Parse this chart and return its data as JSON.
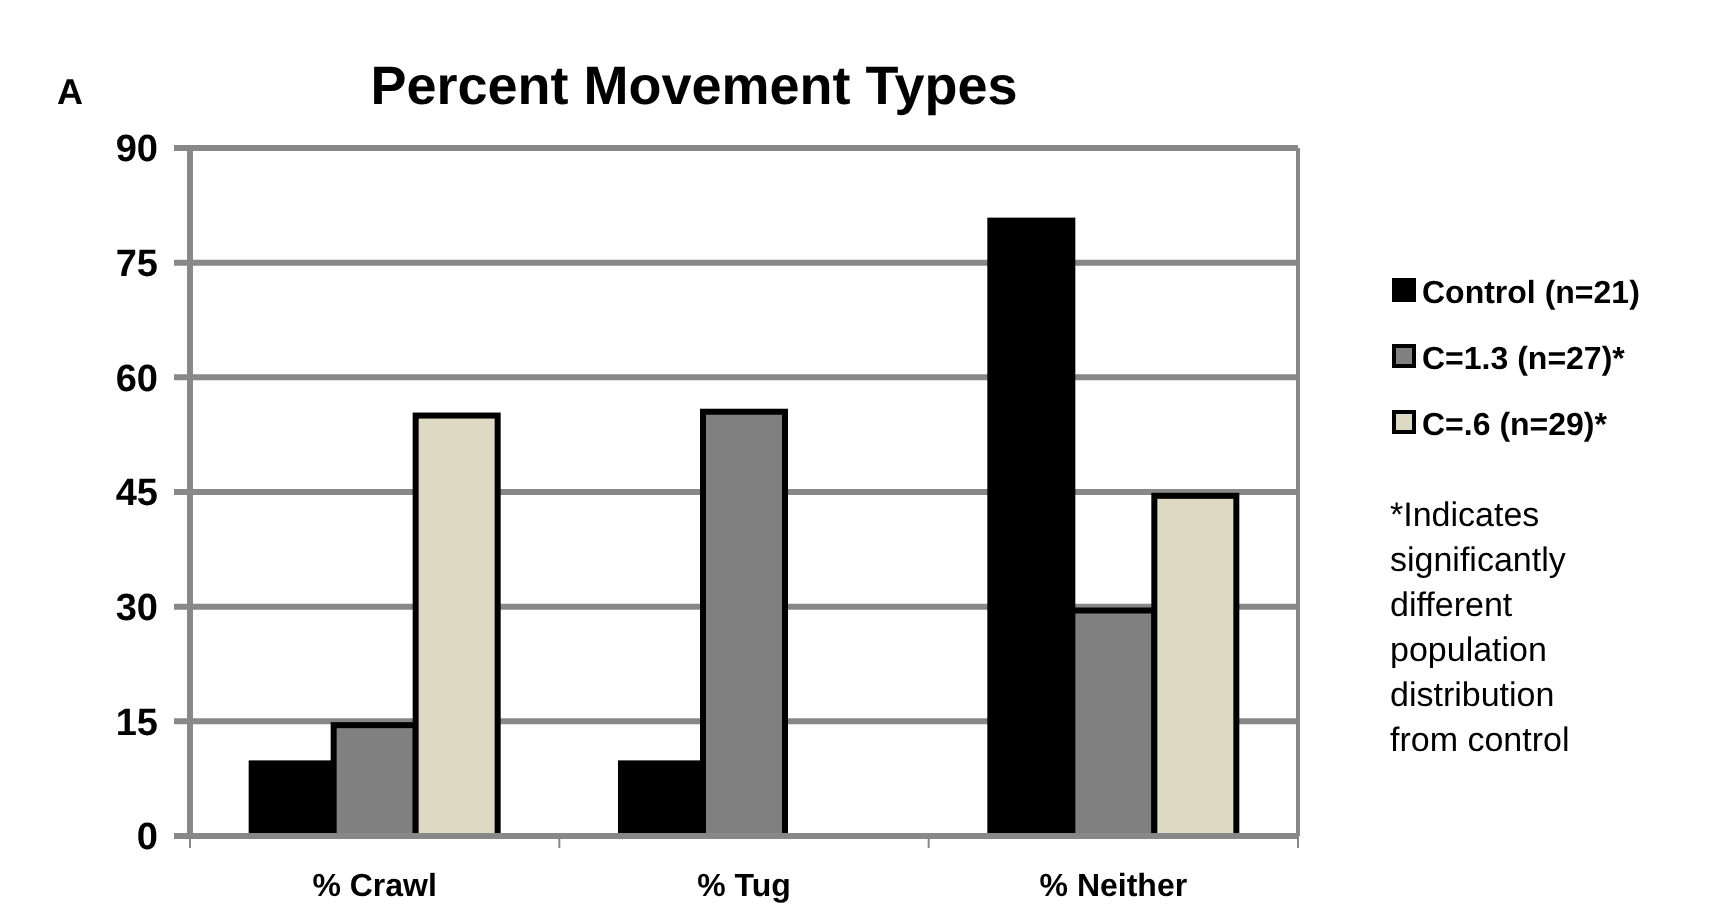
{
  "chart_data": {
    "type": "bar",
    "title": "Percent Movement Types",
    "categories": [
      "% Crawl",
      "% Tug",
      "% Neither"
    ],
    "series": [
      {
        "name": "Control (n=21)",
        "color": "#000000",
        "values": [
          9.5,
          9.5,
          80.5
        ]
      },
      {
        "name": "C=1.3 (n=27)*",
        "color": "#808080",
        "values": [
          14.5,
          55.5,
          29.5
        ]
      },
      {
        "name": "C=.6 (n=29)*",
        "color": "#ddd9c3",
        "values": [
          55,
          0,
          44.5
        ]
      }
    ],
    "ylim": [
      0,
      90
    ],
    "yticks": [
      0,
      15,
      30,
      45,
      60,
      75,
      90
    ],
    "grid": "y",
    "legend": "right",
    "annotations": [
      "A",
      "*Indicates significantly different population distribution from control"
    ]
  }
}
